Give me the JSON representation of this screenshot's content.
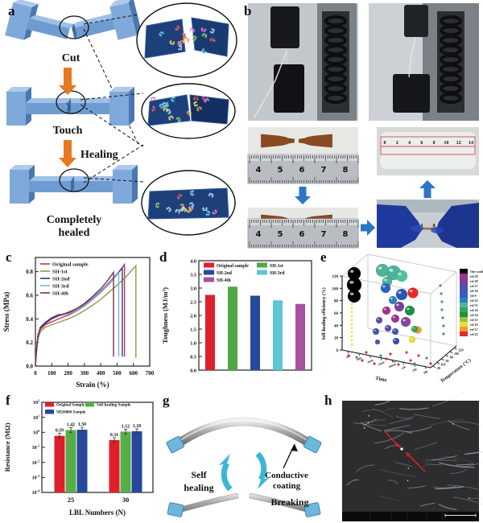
{
  "panel_a": {
    "label": "a",
    "step1": "Cut",
    "step2": "Touch",
    "arrow_label": "Healing",
    "step3_line1": "Completely",
    "step3_line2": "healed"
  },
  "panel_b": {
    "label": "b",
    "ruler_numbers": [
      "4",
      "5",
      "6",
      "7",
      "8"
    ],
    "red_ruler_numbers": [
      "0",
      "2",
      "4",
      "6",
      "8",
      "10",
      "12",
      "14"
    ]
  },
  "panel_g": {
    "label": "g",
    "self_line1": "Self",
    "self_line2": "healing",
    "coating_line1": "Conductive",
    "coating_line2": "coating",
    "breaking": "Breaking"
  },
  "panel_h": {
    "label": "h",
    "info_headers": [
      "1/20/2016",
      "HV",
      "mag",
      "WD",
      "mode"
    ],
    "info_values": [
      "11:29:39 AM",
      "20.00 kV",
      "600 x",
      "11.4 mm",
      "SE"
    ],
    "scale_label": "300 μm"
  },
  "chart_data": [
    {
      "id": "c",
      "type": "line",
      "label": "c",
      "xlabel": "Strain (%)",
      "ylabel": "Stress (MPa)",
      "xlim": [
        0,
        700
      ],
      "ylim": [
        0,
        0.92
      ],
      "xticks": [
        0,
        100,
        200,
        300,
        400,
        500,
        600,
        700
      ],
      "yticks": [
        "0.0",
        "0.2",
        "0.4",
        "0.6",
        "0.8"
      ],
      "legend_position": "top-left",
      "series": [
        {
          "name": "Original sample",
          "color": "#c2334d",
          "points": [
            [
              0,
              0
            ],
            [
              5,
              0.1
            ],
            [
              15,
              0.24
            ],
            [
              30,
              0.31
            ],
            [
              60,
              0.35
            ],
            [
              100,
              0.375
            ],
            [
              150,
              0.405
            ],
            [
              200,
              0.43
            ],
            [
              250,
              0.465
            ],
            [
              300,
              0.51
            ],
            [
              350,
              0.565
            ],
            [
              400,
              0.625
            ],
            [
              450,
              0.695
            ],
            [
              500,
              0.775
            ],
            [
              545,
              0.86
            ],
            [
              545,
              0.08
            ]
          ]
        },
        {
          "name": "SH-1st",
          "color": "#8e9a4b",
          "points": [
            [
              0,
              0
            ],
            [
              5,
              0.09
            ],
            [
              15,
              0.22
            ],
            [
              30,
              0.29
            ],
            [
              60,
              0.33
            ],
            [
              100,
              0.35
            ],
            [
              150,
              0.375
            ],
            [
              200,
              0.4
            ],
            [
              250,
              0.43
            ],
            [
              300,
              0.47
            ],
            [
              350,
              0.515
            ],
            [
              400,
              0.565
            ],
            [
              450,
              0.625
            ],
            [
              500,
              0.685
            ],
            [
              550,
              0.75
            ],
            [
              615,
              0.85
            ],
            [
              615,
              0.07
            ]
          ]
        },
        {
          "name": "SH-2nd",
          "color": "#2a3d8f",
          "points": [
            [
              0,
              0
            ],
            [
              5,
              0.11
            ],
            [
              15,
              0.26
            ],
            [
              30,
              0.33
            ],
            [
              60,
              0.37
            ],
            [
              100,
              0.41
            ],
            [
              140,
              0.435
            ],
            [
              180,
              0.44
            ],
            [
              220,
              0.455
            ],
            [
              260,
              0.48
            ],
            [
              300,
              0.52
            ],
            [
              350,
              0.575
            ],
            [
              400,
              0.635
            ],
            [
              450,
              0.705
            ],
            [
              500,
              0.78
            ],
            [
              532,
              0.83
            ],
            [
              532,
              0.08
            ]
          ]
        },
        {
          "name": "SH-3rd",
          "color": "#7fb2d9",
          "points": [
            [
              0,
              0
            ],
            [
              5,
              0.105
            ],
            [
              15,
              0.25
            ],
            [
              30,
              0.32
            ],
            [
              60,
              0.36
            ],
            [
              100,
              0.4
            ],
            [
              140,
              0.425
            ],
            [
              180,
              0.435
            ],
            [
              220,
              0.45
            ],
            [
              260,
              0.475
            ],
            [
              300,
              0.515
            ],
            [
              350,
              0.57
            ],
            [
              400,
              0.63
            ],
            [
              450,
              0.7
            ],
            [
              510,
              0.79
            ],
            [
              510,
              0.08
            ]
          ]
        },
        {
          "name": "SH-4th",
          "color": "#7e2f45",
          "points": [
            [
              0,
              0
            ],
            [
              5,
              0.105
            ],
            [
              15,
              0.25
            ],
            [
              30,
              0.32
            ],
            [
              60,
              0.36
            ],
            [
              100,
              0.4
            ],
            [
              150,
              0.43
            ],
            [
              200,
              0.455
            ],
            [
              250,
              0.485
            ],
            [
              300,
              0.53
            ],
            [
              350,
              0.59
            ],
            [
              400,
              0.655
            ],
            [
              440,
              0.72
            ],
            [
              478,
              0.795
            ],
            [
              478,
              0.08
            ]
          ]
        }
      ]
    },
    {
      "id": "d",
      "type": "bar",
      "label": "d",
      "ylabel": "Toughness (MJ/m³)",
      "ylim": [
        0,
        4.0
      ],
      "yticks": [
        "0.0",
        "0.5",
        "1.0",
        "1.5",
        "2.0",
        "2.5",
        "3.0",
        "3.5",
        "4.0"
      ],
      "categories": [
        "Original sample",
        "SH-1st",
        "SH-2nd",
        "SH-3rd",
        "SH-4th"
      ],
      "values": [
        2.75,
        3.05,
        2.72,
        2.55,
        2.42
      ],
      "colors": [
        "#e01f2d",
        "#4fa847",
        "#27489c",
        "#5fc4d4",
        "#a8519f"
      ],
      "legend_columns": 2
    },
    {
      "id": "e",
      "type": "scatter3d",
      "label": "e",
      "zlabel": "Self-healing efficiency (%)",
      "xlabel": "Time",
      "ylabel": "Temperature (°C)",
      "z_ticks": [
        0,
        20,
        40,
        60,
        80,
        100,
        120
      ],
      "time_ticks": [
        "10s",
        "100s",
        "2min",
        "5min",
        "10min",
        "12h",
        "24h",
        "48h"
      ],
      "temp_ticks": [
        "20",
        "RT",
        "50",
        "80",
        "195",
        "220"
      ],
      "legend": [
        {
          "label": "Our work",
          "color": "#000000"
        },
        {
          "label": "ref 29",
          "color": "#a2308e"
        },
        {
          "label": "ref 28",
          "color": "#7a3f9c"
        },
        {
          "label": "ref 27",
          "color": "#5a4fa8"
        },
        {
          "label": "ref 36",
          "color": "#4456b0"
        },
        {
          "label": "ref 9",
          "color": "#2f62c0"
        },
        {
          "label": "ref 25",
          "color": "#2e7fc0"
        },
        {
          "label": "ref 31",
          "color": "#4fb39a"
        },
        {
          "label": "ref 16",
          "color": "#3aa35a"
        },
        {
          "label": "ref 24",
          "color": "#1f8f45"
        },
        {
          "label": "ref 23",
          "color": "#9ec33b"
        },
        {
          "label": "ref 18",
          "color": "#f0dc30"
        },
        {
          "label": "ref 17",
          "color": "#f29a2e"
        },
        {
          "label": "ref 22",
          "color": "#e8282a"
        }
      ],
      "bubbles": [
        {
          "x": 45,
          "y": 30,
          "r": 8,
          "color": "#000000"
        },
        {
          "x": 45,
          "y": 44,
          "r": 9,
          "color": "#000000"
        },
        {
          "x": 45,
          "y": 58,
          "r": 8,
          "color": "#000000"
        },
        {
          "x": 80,
          "y": 26,
          "r": 8,
          "color": "#4fb39a"
        },
        {
          "x": 94,
          "y": 29,
          "r": 9,
          "color": "#4fb39a"
        },
        {
          "x": 104,
          "y": 33,
          "r": 7,
          "color": "#52c0a0"
        },
        {
          "x": 86,
          "y": 40,
          "r": 6,
          "color": "#4fb39a"
        },
        {
          "x": 84,
          "y": 48,
          "r": 6,
          "color": "#2f62c0"
        },
        {
          "x": 104,
          "y": 56,
          "r": 7,
          "color": "#2a55b8"
        },
        {
          "x": 93,
          "y": 63,
          "r": 5,
          "color": "#2e7fc0"
        },
        {
          "x": 118,
          "y": 54,
          "r": 6.5,
          "color": "#e8282a"
        },
        {
          "x": 85,
          "y": 76,
          "r": 5,
          "color": "#a2308e"
        },
        {
          "x": 96,
          "y": 86,
          "r": 5,
          "color": "#a2308e"
        },
        {
          "x": 101,
          "y": 71,
          "r": 6,
          "color": "#7a3f9c"
        },
        {
          "x": 109,
          "y": 90,
          "r": 6,
          "color": "#8446a4"
        },
        {
          "x": 76,
          "y": 88,
          "r": 4,
          "color": "#5a4fa8"
        },
        {
          "x": 87,
          "y": 98,
          "r": 4,
          "color": "#5a4fa8"
        },
        {
          "x": 114,
          "y": 76,
          "r": 6,
          "color": "#1f8f45"
        },
        {
          "x": 120,
          "y": 99,
          "r": 4,
          "color": "#3aa35a"
        },
        {
          "x": 124,
          "y": 100,
          "r": 4.5,
          "color": "#f29a2e"
        },
        {
          "x": 117,
          "y": 112,
          "r": 4,
          "color": "#f0dc30"
        },
        {
          "x": 72,
          "y": 102,
          "r": 4,
          "color": "#4456b0"
        },
        {
          "x": 96,
          "y": 102,
          "r": 4,
          "color": "#4456b0"
        },
        {
          "x": 74,
          "y": 115,
          "r": 3,
          "color": "#4456b0"
        },
        {
          "x": 97,
          "y": 114,
          "r": 4,
          "color": "#3a4cae"
        },
        {
          "x": 38,
          "y": 132,
          "r": 1.5,
          "color": "#e8282a"
        },
        {
          "x": 55,
          "y": 138,
          "r": 1.5,
          "color": "#e8282a"
        },
        {
          "x": 70,
          "y": 142,
          "r": 1.5,
          "color": "#e8282a"
        },
        {
          "x": 85,
          "y": 136,
          "r": 1.5,
          "color": "#e8282a"
        },
        {
          "x": 100,
          "y": 143,
          "r": 1.5,
          "color": "#e8282a"
        },
        {
          "x": 115,
          "y": 138,
          "r": 1.5,
          "color": "#e8282a"
        },
        {
          "x": 60,
          "y": 128,
          "r": 1.5,
          "color": "#e8282a"
        },
        {
          "x": 90,
          "y": 130,
          "r": 1.5,
          "color": "#e8282a"
        },
        {
          "x": 110,
          "y": 128,
          "r": 1.5,
          "color": "#e8282a"
        },
        {
          "x": 125,
          "y": 132,
          "r": 1.5,
          "color": "#e8282a"
        },
        {
          "x": 140,
          "y": 142,
          "r": 1.5,
          "color": "#e8282a"
        },
        {
          "x": 48,
          "y": 134,
          "r": 1.5,
          "color": "#3aa35a"
        },
        {
          "x": 78,
          "y": 132,
          "r": 1.5,
          "color": "#3aa35a"
        },
        {
          "x": 95,
          "y": 139,
          "r": 1.5,
          "color": "#3aa35a"
        },
        {
          "x": 120,
          "y": 142,
          "r": 1.5,
          "color": "#3aa35a"
        },
        {
          "x": 135,
          "y": 135,
          "r": 1.5,
          "color": "#3aa35a"
        },
        {
          "x": 152,
          "y": 45,
          "r": 1.5,
          "color": "#3aa35a"
        },
        {
          "x": 153,
          "y": 55,
          "r": 1.5,
          "color": "#3aa35a"
        },
        {
          "x": 154,
          "y": 65,
          "r": 1.5,
          "color": "#3aa35a"
        },
        {
          "x": 154,
          "y": 75,
          "r": 1.5,
          "color": "#3aa35a"
        },
        {
          "x": 155,
          "y": 85,
          "r": 1.5,
          "color": "#3aa35a"
        },
        {
          "x": 156,
          "y": 95,
          "r": 1.5,
          "color": "#3aa35a"
        },
        {
          "x": 156,
          "y": 105,
          "r": 1.5,
          "color": "#3aa35a"
        }
      ],
      "yellow_column": {
        "x": 42,
        "y_from": 38,
        "y_to": 120,
        "step": 5,
        "r": 1.3,
        "color": "#f0dc30"
      }
    },
    {
      "id": "f",
      "type": "bar",
      "label": "f",
      "xlabel": "LBL Numbers (N)",
      "ylabel": "Resistance (MΩ)",
      "yscale": "log",
      "ylim": [
        0.0001,
        100
      ],
      "categories": [
        "25",
        "30"
      ],
      "series": [
        {
          "name": "Original Sample",
          "color": "#e01f2d",
          "values": [
            0.59,
            0.31
          ]
        },
        {
          "name": "Self-healing Sample",
          "color": "#56ae49",
          "values": [
            1.42,
            1.12
          ]
        },
        {
          "name": "SH20000 Sample",
          "color": "#27489c",
          "values": [
            1.5,
            1.18
          ]
        }
      ],
      "value_labels": [
        [
          "0.59",
          "1.42",
          "1.50"
        ],
        [
          "0.31",
          "1.12",
          "1.18"
        ]
      ]
    }
  ],
  "colors": {
    "orange_arrow": "#e87722",
    "blue_arrow": "#2e75c3",
    "cyan_arrow": "#3ab6d6",
    "sample_blue_front": "#7fa9da",
    "sample_blue_top": "#adc9ec",
    "sample_blue_side": "#4c77ae",
    "brown_sample": "#8a4a22",
    "sem_red": "#d42222"
  }
}
